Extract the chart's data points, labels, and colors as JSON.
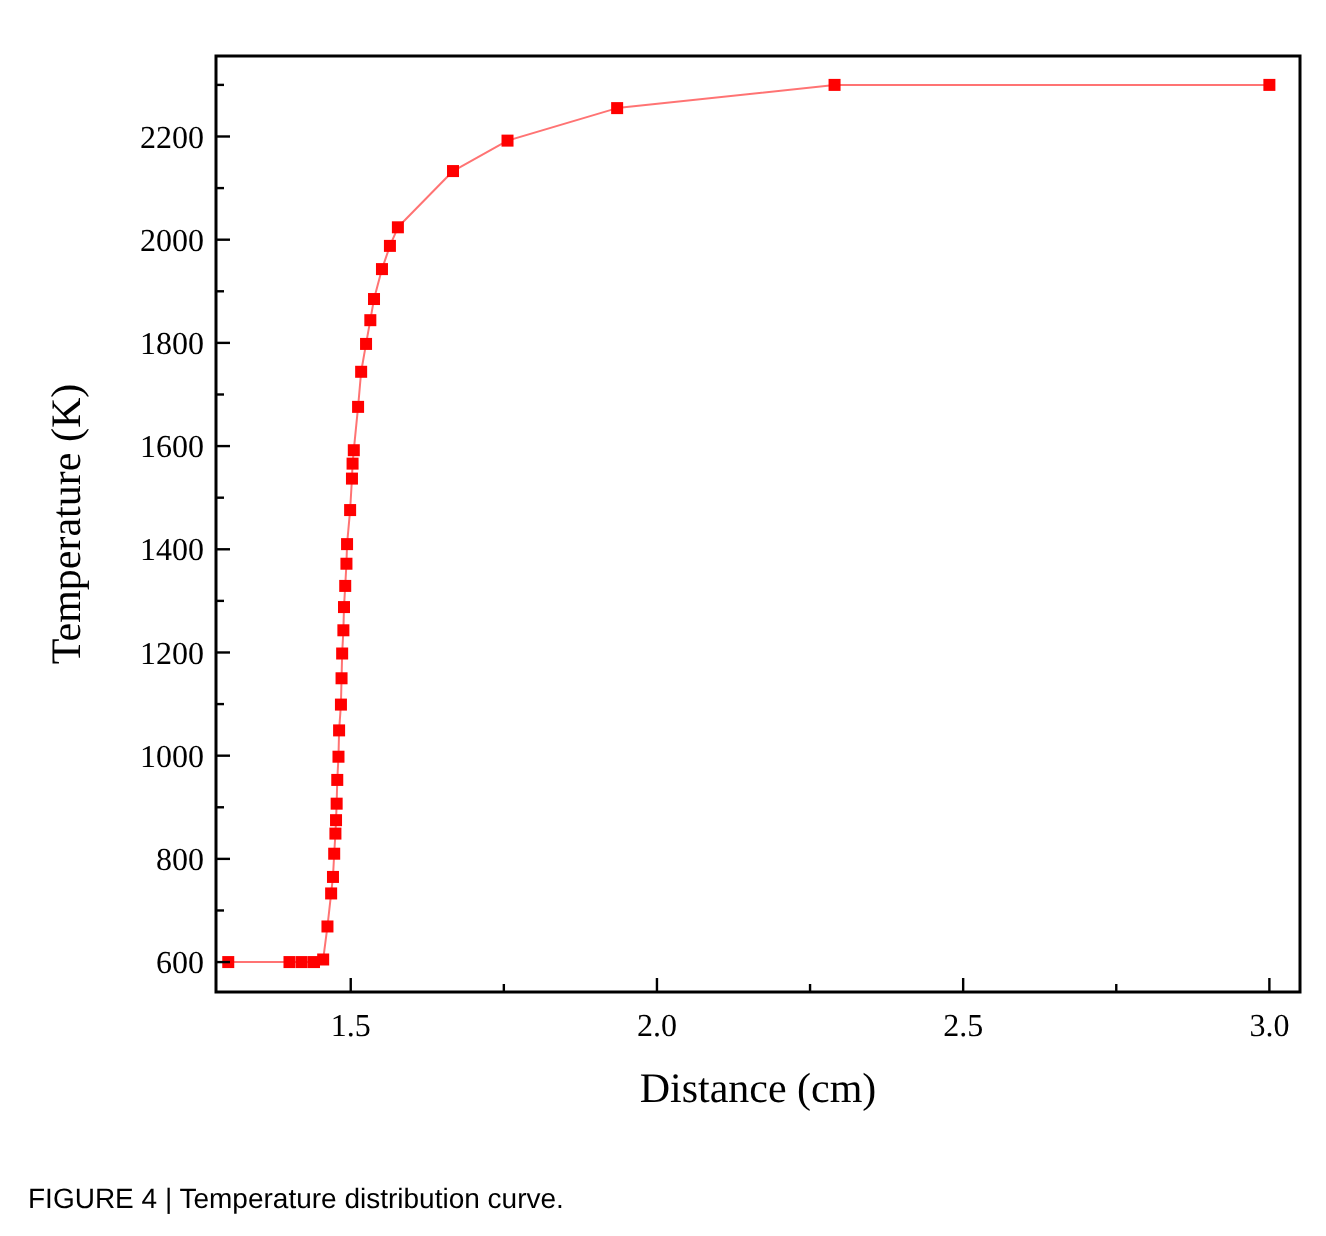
{
  "chart_data": {
    "type": "line",
    "xlabel": "Distance (cm)",
    "ylabel": "Temperature (K)",
    "annotations": [
      "FIGURE 4 | Temperature distribution curve."
    ],
    "xlim": [
      1.28,
      3.05
    ],
    "ylim": [
      542,
      2356
    ],
    "xticks": [
      1.5,
      {
        "value": 1.75,
        "label": null
      },
      {
        "value": 2,
        "label": "2.0"
      },
      {
        "value": 2.25,
        "label": null
      },
      2.5,
      {
        "value": 2.75,
        "label": null
      },
      {
        "value": 3,
        "label": "3.0"
      }
    ],
    "yticks": [
      600,
      {
        "value": 700,
        "label": null
      },
      800,
      {
        "value": 900,
        "label": null
      },
      1000,
      {
        "value": 1100,
        "label": null
      },
      1200,
      {
        "value": 1300,
        "label": null
      },
      1400,
      {
        "value": 1500,
        "label": null
      },
      1600,
      {
        "value": 1700,
        "label": null
      },
      1800,
      {
        "value": 1900,
        "label": null
      },
      2000,
      {
        "value": 2100,
        "label": null
      },
      2200,
      {
        "value": 2300,
        "label": null
      }
    ],
    "grid": false,
    "marker": "square",
    "line_style": "solid",
    "series": [
      {
        "color": "#ff0000",
        "x": [
          1.3,
          1.4,
          1.42,
          1.44,
          1.455,
          1.462,
          1.468,
          1.471,
          1.473,
          1.475,
          1.476,
          1.477,
          1.478,
          1.48,
          1.481,
          1.484,
          1.485,
          1.486,
          1.488,
          1.489,
          1.491,
          1.493,
          1.494,
          1.499,
          1.502,
          1.503,
          1.505,
          1.512,
          1.517,
          1.525,
          1.532,
          1.538,
          1.551,
          1.564,
          1.577,
          1.667,
          1.756,
          1.935,
          2.29,
          3.0
        ],
        "values": [
          600,
          600,
          600,
          600,
          605,
          669,
          733,
          765,
          810,
          849,
          875,
          907,
          953,
          998,
          1049,
          1099,
          1150,
          1198,
          1243,
          1288,
          1329,
          1372,
          1410,
          1476,
          1537,
          1566,
          1592,
          1676,
          1744,
          1798,
          1844,
          1885,
          1943,
          1988,
          2024,
          2133,
          2192,
          2255,
          2300,
          2300
        ]
      }
    ]
  }
}
